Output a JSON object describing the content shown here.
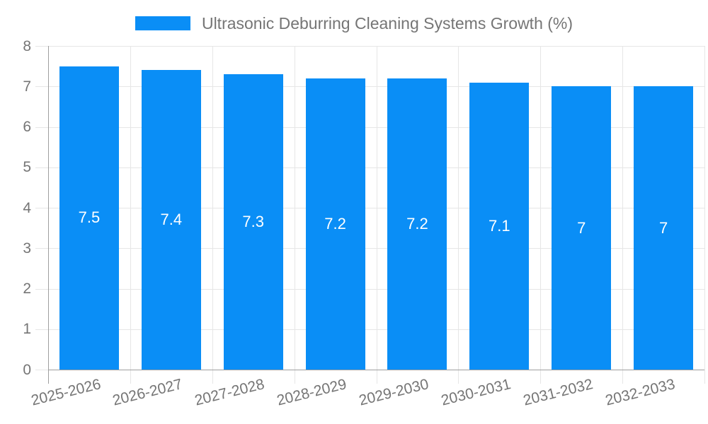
{
  "chart_data": {
    "type": "bar",
    "title": "Ultrasonic Deburring Cleaning Systems Growth (%)",
    "categories": [
      "2025-2026",
      "2026-2027",
      "2027-2028",
      "2028-2029",
      "2029-2030",
      "2030-2031",
      "2031-2032",
      "2032-2033"
    ],
    "series": [
      {
        "name": "Ultrasonic Deburring Cleaning Systems Growth (%)",
        "values": [
          7.5,
          7.4,
          7.3,
          7.2,
          7.2,
          7.1,
          7,
          7
        ]
      }
    ],
    "value_labels": [
      "7.5",
      "7.4",
      "7.3",
      "7.2",
      "7.2",
      "7.1",
      "7",
      "7"
    ],
    "xlabel": "",
    "ylabel": "",
    "ylim": [
      0,
      8
    ],
    "ytick_step": 1,
    "ytick_labels": [
      "0",
      "1",
      "2",
      "3",
      "4",
      "5",
      "6",
      "7",
      "8"
    ],
    "grid": true,
    "legend_position": "top-center",
    "xtick_rotation_deg": -14,
    "colors": {
      "bar": "#0a8ef6",
      "value_label_text": "#ffffff",
      "grid_line": "#e6e6e6",
      "axis_line": "#9e9e9e",
      "tick_label_text": "#757575",
      "legend_text": "#757575",
      "background": "#ffffff"
    }
  }
}
